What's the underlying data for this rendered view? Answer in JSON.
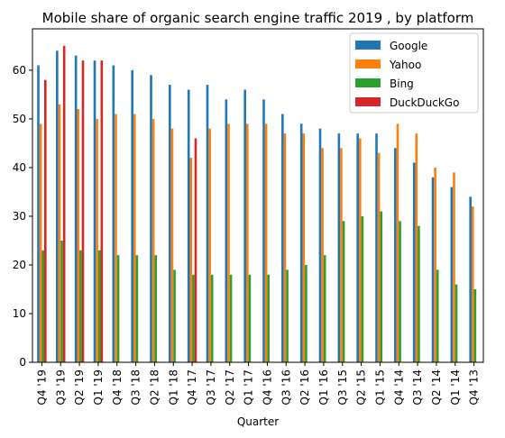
{
  "chart_data": {
    "type": "bar",
    "title": "Mobile share of organic search engine traffic 2019 , by platform",
    "xlabel": "Quarter",
    "ylabel": "",
    "ylim": [
      0,
      68.5
    ],
    "yticks": [
      0,
      10,
      20,
      30,
      40,
      50,
      60
    ],
    "grid": false,
    "legend_position": "top-right",
    "categories": [
      "Q4 '19",
      "Q3 '19",
      "Q2 '19",
      "Q1 '19",
      "Q4 '18",
      "Q3 '18",
      "Q2 '18",
      "Q1 '18",
      "Q4 '17",
      "Q3 '17",
      "Q2 '17",
      "Q1 '17",
      "Q4 '16",
      "Q3 '16",
      "Q2 '16",
      "Q1 '16",
      "Q3 '15",
      "Q2 '15",
      "Q1 '15",
      "Q4 '14",
      "Q3 '14",
      "Q2 '14",
      "Q1 '14",
      "Q4 '13"
    ],
    "series": [
      {
        "name": "Google",
        "color": "#1f77b4",
        "values": [
          61,
          64,
          63,
          62,
          61,
          60,
          59,
          57,
          56,
          57,
          54,
          56,
          54,
          51,
          49,
          48,
          47,
          47,
          47,
          44,
          41,
          38,
          36,
          34
        ]
      },
      {
        "name": "Yahoo",
        "color": "#ff7f0e",
        "values": [
          49,
          53,
          52,
          50,
          51,
          51,
          50,
          48,
          42,
          48,
          49,
          49,
          49,
          47,
          47,
          44,
          44,
          46,
          43,
          49,
          47,
          40,
          39,
          32
        ]
      },
      {
        "name": "Bing",
        "color": "#2ca02c",
        "values": [
          23,
          25,
          23,
          23,
          22,
          22,
          22,
          19,
          18,
          18,
          18,
          18,
          18,
          19,
          20,
          22,
          29,
          30,
          31,
          29,
          28,
          19,
          16,
          15
        ]
      },
      {
        "name": "DuckDuckGo",
        "color": "#d62728",
        "values": [
          58,
          65,
          62,
          62,
          null,
          null,
          null,
          null,
          46,
          null,
          null,
          null,
          null,
          null,
          null,
          null,
          null,
          null,
          null,
          null,
          null,
          null,
          null,
          null
        ]
      }
    ]
  }
}
